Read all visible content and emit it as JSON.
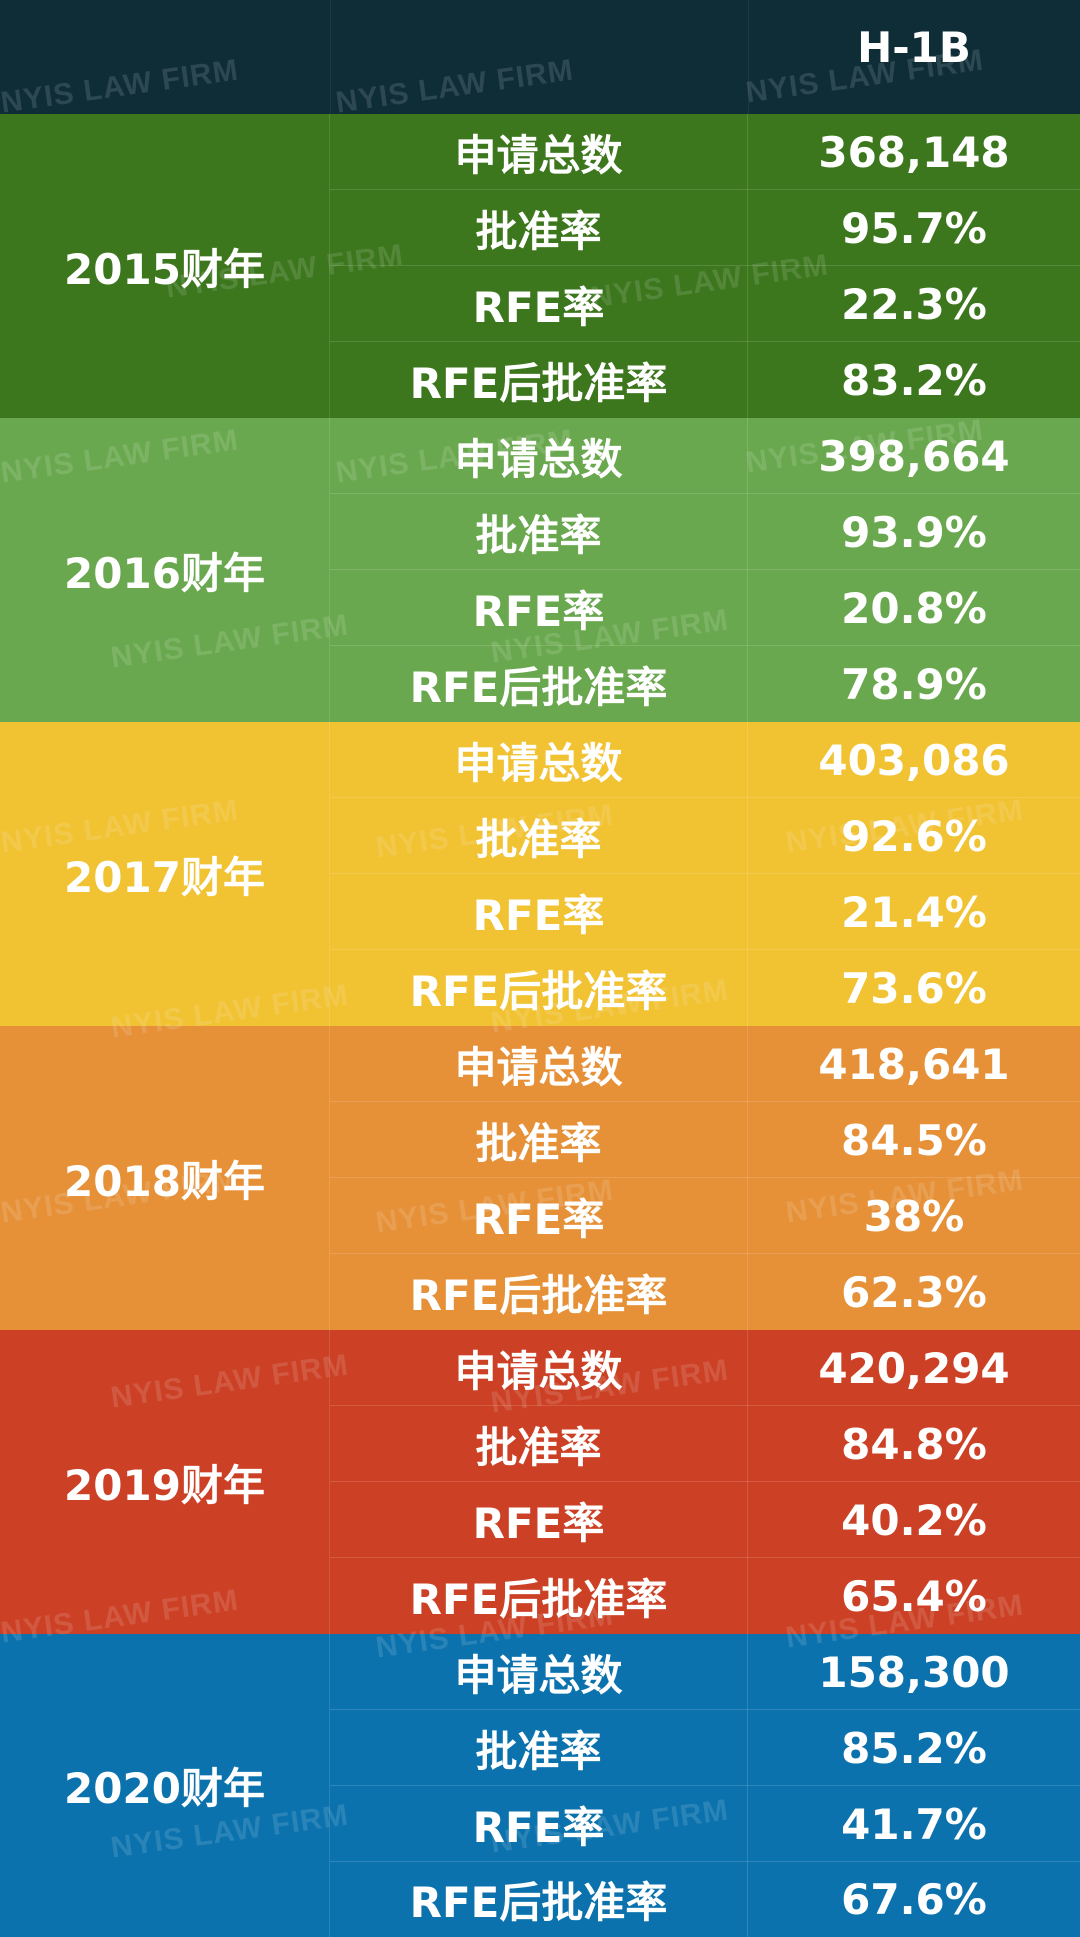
{
  "header": {
    "title": "H-1B"
  },
  "watermark_text": "NYIS LAW FIRM",
  "blocks": [
    {
      "year": "2015财年",
      "color": "#3c761d",
      "rows": [
        {
          "metric": "申请总数",
          "value": "368,148"
        },
        {
          "metric": "批准率",
          "value": "95.7%"
        },
        {
          "metric": "RFE率",
          "value": "22.3%"
        },
        {
          "metric": "RFE后批准率",
          "value": "83.2%"
        }
      ]
    },
    {
      "year": "2016财年",
      "color": "#6aa84f",
      "rows": [
        {
          "metric": "申请总数",
          "value": "398,664"
        },
        {
          "metric": "批准率",
          "value": "93.9%"
        },
        {
          "metric": "RFE率",
          "value": "20.8%"
        },
        {
          "metric": "RFE后批准率",
          "value": "78.9%"
        }
      ]
    },
    {
      "year": "2017财年",
      "color": "#f1c232",
      "rows": [
        {
          "metric": "申请总数",
          "value": "403,086"
        },
        {
          "metric": "批准率",
          "value": "92.6%"
        },
        {
          "metric": "RFE率",
          "value": "21.4%"
        },
        {
          "metric": "RFE后批准率",
          "value": "73.6%"
        }
      ]
    },
    {
      "year": "2018财年",
      "color": "#e69138",
      "rows": [
        {
          "metric": "申请总数",
          "value": "418,641"
        },
        {
          "metric": "批准率",
          "value": "84.5%"
        },
        {
          "metric": "RFE率",
          "value": "38%"
        },
        {
          "metric": "RFE后批准率",
          "value": "62.3%"
        }
      ]
    },
    {
      "year": "2019财年",
      "color": "#cc4125",
      "rows": [
        {
          "metric": "申请总数",
          "value": "420,294"
        },
        {
          "metric": "批准率",
          "value": "84.8%"
        },
        {
          "metric": "RFE率",
          "value": "40.2%"
        },
        {
          "metric": "RFE后批准率",
          "value": "65.4%"
        }
      ]
    },
    {
      "year": "2020财年",
      "color": "#0b72ad",
      "rows": [
        {
          "metric": "申请总数",
          "value": "158,300"
        },
        {
          "metric": "批准率",
          "value": "85.2%"
        },
        {
          "metric": "RFE率",
          "value": "41.7%"
        },
        {
          "metric": "RFE后批准率",
          "value": "67.6%"
        }
      ]
    }
  ]
}
